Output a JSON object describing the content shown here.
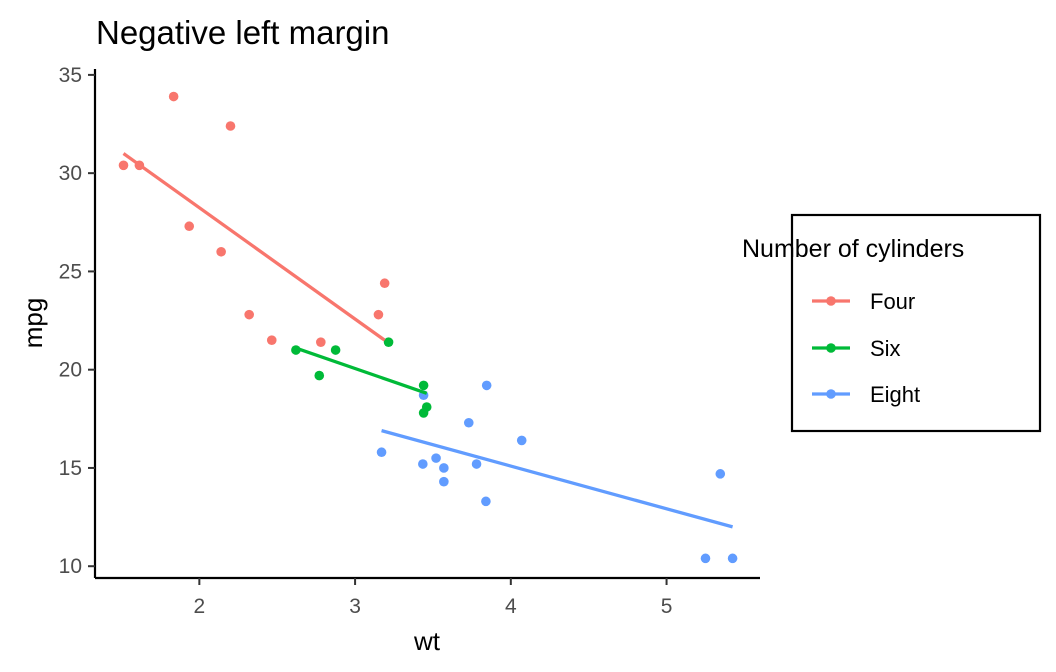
{
  "chart_data": {
    "type": "scatter",
    "title": "Negative left margin",
    "xlabel": "wt",
    "ylabel": "mpg",
    "xlim": [
      1.33,
      5.6
    ],
    "ylim": [
      9.4,
      35.3
    ],
    "xticks": [
      2,
      3,
      4,
      5
    ],
    "yticks": [
      10,
      15,
      20,
      25,
      30,
      35
    ],
    "grid": false,
    "legend": {
      "title": "Number of cylinders",
      "position": "right",
      "entries": [
        "Four",
        "Six",
        "Eight"
      ]
    },
    "series": [
      {
        "name": "Four",
        "color": "#F8766D",
        "x": [
          2.32,
          3.19,
          3.15,
          2.2,
          1.615,
          1.835,
          2.465,
          1.935,
          2.14,
          1.513,
          2.78
        ],
        "y": [
          22.8,
          24.4,
          22.8,
          32.4,
          30.4,
          33.9,
          21.5,
          27.3,
          26.0,
          30.4,
          21.4
        ],
        "fit": {
          "x": [
            1.513,
            3.19
          ],
          "y": [
            31.0,
            21.5
          ]
        }
      },
      {
        "name": "Six",
        "color": "#00BA38",
        "x": [
          2.62,
          2.875,
          3.215,
          3.46,
          3.44,
          3.44,
          2.77
        ],
        "y": [
          21.0,
          21.0,
          21.4,
          18.1,
          19.2,
          17.8,
          19.7
        ],
        "fit": {
          "x": [
            2.62,
            3.46
          ],
          "y": [
            21.1,
            18.8
          ]
        }
      },
      {
        "name": "Eight",
        "color": "#619CFF",
        "x": [
          3.44,
          3.57,
          4.07,
          3.73,
          3.78,
          5.25,
          5.424,
          5.345,
          3.52,
          3.435,
          3.84,
          3.845,
          3.17,
          3.57
        ],
        "y": [
          18.7,
          14.3,
          16.4,
          17.3,
          15.2,
          10.4,
          10.4,
          14.7,
          15.5,
          15.2,
          13.3,
          19.2,
          15.8,
          15.0
        ],
        "fit": {
          "x": [
            3.17,
            5.424
          ],
          "y": [
            16.9,
            12.0
          ]
        }
      }
    ]
  }
}
